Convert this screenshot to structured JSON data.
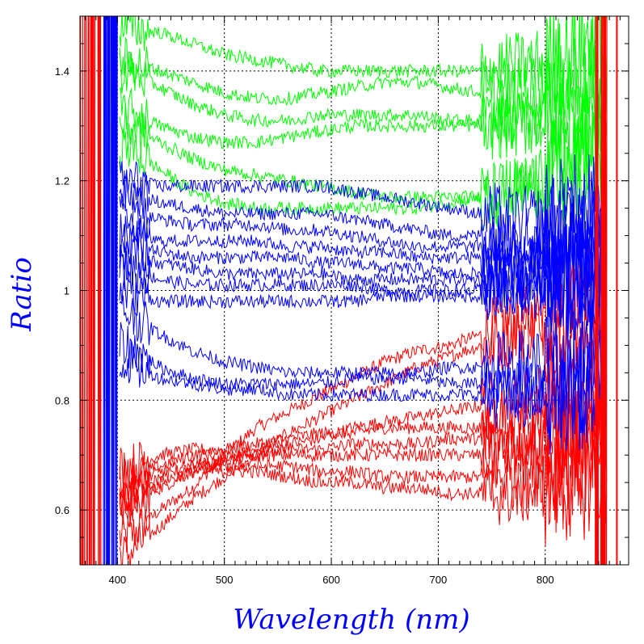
{
  "chart_data": {
    "type": "line",
    "xlabel": "Wavelength (nm)",
    "ylabel": "Ratio",
    "xlim": [
      365,
      878
    ],
    "ylim": [
      0.5,
      1.5
    ],
    "x_ticks": [
      400,
      500,
      600,
      700,
      800
    ],
    "x_tick_labels": [
      "400",
      "500",
      "600",
      "700",
      "800"
    ],
    "y_ticks": [
      0.6,
      0.8,
      1.0,
      1.2,
      1.4
    ],
    "y_tick_labels": [
      "0.6",
      "0.8",
      "1",
      "1.2",
      "1.4"
    ],
    "grid": true,
    "grid_style": "dotted",
    "label_color": "#0000ff",
    "series_colors": {
      "red": "#ff0000",
      "green": "#00ff00",
      "blue": "#0000ff"
    },
    "x": [
      410,
      440,
      470,
      500,
      530,
      560,
      590,
      620,
      650,
      680,
      710,
      740,
      770,
      800,
      830,
      850
    ],
    "series": [
      {
        "color": "#00ff00",
        "values": [
          1.48,
          1.47,
          1.45,
          1.43,
          1.42,
          1.41,
          1.4,
          1.4,
          1.4,
          1.4,
          1.4,
          1.4,
          1.41,
          1.42,
          1.44,
          1.46
        ]
      },
      {
        "color": "#00ff00",
        "values": [
          1.42,
          1.4,
          1.38,
          1.36,
          1.35,
          1.35,
          1.36,
          1.37,
          1.38,
          1.38,
          1.37,
          1.36,
          1.36,
          1.37,
          1.38,
          1.4
        ]
      },
      {
        "color": "#00ff00",
        "values": [
          1.4,
          1.37,
          1.34,
          1.32,
          1.31,
          1.31,
          1.32,
          1.32,
          1.32,
          1.32,
          1.31,
          1.31,
          1.31,
          1.32,
          1.33,
          1.35
        ]
      },
      {
        "color": "#00ff00",
        "values": [
          1.33,
          1.3,
          1.28,
          1.27,
          1.27,
          1.28,
          1.29,
          1.3,
          1.3,
          1.3,
          1.3,
          1.3,
          1.3,
          1.31,
          1.33,
          1.34
        ]
      },
      {
        "color": "#00ff00",
        "values": [
          1.3,
          1.27,
          1.24,
          1.22,
          1.21,
          1.2,
          1.19,
          1.18,
          1.17,
          1.17,
          1.17,
          1.17,
          1.18,
          1.2,
          1.22,
          1.25
        ]
      },
      {
        "color": "#00ff00",
        "values": [
          1.26,
          1.22,
          1.18,
          1.16,
          1.15,
          1.15,
          1.15,
          1.15,
          1.15,
          1.15,
          1.16,
          1.17,
          1.18,
          1.2,
          1.22,
          1.24
        ]
      },
      {
        "color": "#0000ff",
        "values": [
          1.2,
          1.19,
          1.19,
          1.19,
          1.19,
          1.19,
          1.19,
          1.18,
          1.17,
          1.16,
          1.15,
          1.14,
          1.13,
          1.13,
          1.14,
          1.15
        ]
      },
      {
        "color": "#0000ff",
        "values": [
          1.18,
          1.16,
          1.15,
          1.14,
          1.14,
          1.14,
          1.14,
          1.13,
          1.12,
          1.11,
          1.1,
          1.1,
          1.1,
          1.1,
          1.11,
          1.12
        ]
      },
      {
        "color": "#0000ff",
        "values": [
          1.14,
          1.13,
          1.12,
          1.12,
          1.12,
          1.11,
          1.11,
          1.1,
          1.09,
          1.08,
          1.08,
          1.08,
          1.08,
          1.08,
          1.09,
          1.1
        ]
      },
      {
        "color": "#0000ff",
        "values": [
          1.1,
          1.09,
          1.09,
          1.09,
          1.09,
          1.08,
          1.08,
          1.07,
          1.07,
          1.06,
          1.06,
          1.06,
          1.06,
          1.06,
          1.07,
          1.08
        ]
      },
      {
        "color": "#0000ff",
        "values": [
          1.08,
          1.07,
          1.06,
          1.06,
          1.06,
          1.06,
          1.05,
          1.05,
          1.04,
          1.04,
          1.03,
          1.03,
          1.03,
          1.04,
          1.05,
          1.06
        ]
      },
      {
        "color": "#0000ff",
        "values": [
          1.06,
          1.05,
          1.04,
          1.03,
          1.03,
          1.03,
          1.03,
          1.02,
          1.02,
          1.02,
          1.02,
          1.02,
          1.02,
          1.03,
          1.04,
          1.05
        ]
      },
      {
        "color": "#0000ff",
        "values": [
          1.04,
          1.02,
          1.01,
          1.01,
          1.01,
          1.01,
          1.01,
          1.01,
          1.0,
          1.0,
          1.0,
          1.0,
          1.01,
          1.02,
          1.03,
          1.04
        ]
      },
      {
        "color": "#0000ff",
        "values": [
          1.0,
          0.98,
          0.98,
          0.98,
          0.98,
          0.98,
          0.98,
          0.98,
          0.99,
          0.99,
          0.99,
          0.99,
          1.0,
          1.01,
          1.02,
          1.03
        ]
      },
      {
        "color": "#0000ff",
        "values": [
          0.96,
          0.92,
          0.89,
          0.87,
          0.86,
          0.85,
          0.85,
          0.85,
          0.85,
          0.85,
          0.86,
          0.86,
          0.87,
          0.87,
          0.88,
          0.89
        ]
      },
      {
        "color": "#0000ff",
        "values": [
          0.9,
          0.86,
          0.84,
          0.83,
          0.83,
          0.83,
          0.83,
          0.84,
          0.84,
          0.84,
          0.83,
          0.83,
          0.82,
          0.82,
          0.82,
          0.83
        ]
      },
      {
        "color": "#0000ff",
        "values": [
          0.87,
          0.84,
          0.83,
          0.82,
          0.82,
          0.81,
          0.81,
          0.81,
          0.81,
          0.81,
          0.81,
          0.81,
          0.81,
          0.81,
          0.82,
          0.83
        ]
      },
      {
        "color": "#ff0000",
        "values": [
          0.55,
          0.6,
          0.64,
          0.7,
          0.75,
          0.78,
          0.81,
          0.84,
          0.87,
          0.89,
          0.9,
          0.92,
          0.94,
          0.96,
          0.98,
          1.0
        ]
      },
      {
        "color": "#ff0000",
        "values": [
          0.52,
          0.57,
          0.62,
          0.66,
          0.7,
          0.74,
          0.77,
          0.8,
          0.83,
          0.86,
          0.88,
          0.9,
          0.92,
          0.94,
          0.96,
          0.98
        ]
      },
      {
        "color": "#ff0000",
        "values": [
          0.62,
          0.64,
          0.67,
          0.69,
          0.71,
          0.72,
          0.73,
          0.75,
          0.76,
          0.77,
          0.78,
          0.79,
          0.8,
          0.81,
          0.82,
          0.84
        ]
      },
      {
        "color": "#ff0000",
        "values": [
          0.68,
          0.7,
          0.71,
          0.71,
          0.72,
          0.73,
          0.74,
          0.74,
          0.75,
          0.75,
          0.75,
          0.75,
          0.75,
          0.75,
          0.76,
          0.77
        ]
      },
      {
        "color": "#ff0000",
        "values": [
          0.66,
          0.68,
          0.7,
          0.7,
          0.7,
          0.71,
          0.71,
          0.72,
          0.72,
          0.72,
          0.73,
          0.73,
          0.73,
          0.73,
          0.74,
          0.75
        ]
      },
      {
        "color": "#ff0000",
        "values": [
          0.64,
          0.67,
          0.68,
          0.69,
          0.7,
          0.7,
          0.7,
          0.7,
          0.7,
          0.7,
          0.7,
          0.7,
          0.7,
          0.7,
          0.71,
          0.72
        ]
      },
      {
        "color": "#ff0000",
        "values": [
          0.62,
          0.66,
          0.68,
          0.68,
          0.68,
          0.68,
          0.67,
          0.67,
          0.66,
          0.66,
          0.66,
          0.66,
          0.66,
          0.67,
          0.68,
          0.7
        ]
      },
      {
        "color": "#ff0000",
        "values": [
          0.6,
          0.65,
          0.67,
          0.67,
          0.67,
          0.66,
          0.65,
          0.65,
          0.64,
          0.64,
          0.63,
          0.63,
          0.63,
          0.64,
          0.65,
          0.67
        ]
      }
    ]
  }
}
